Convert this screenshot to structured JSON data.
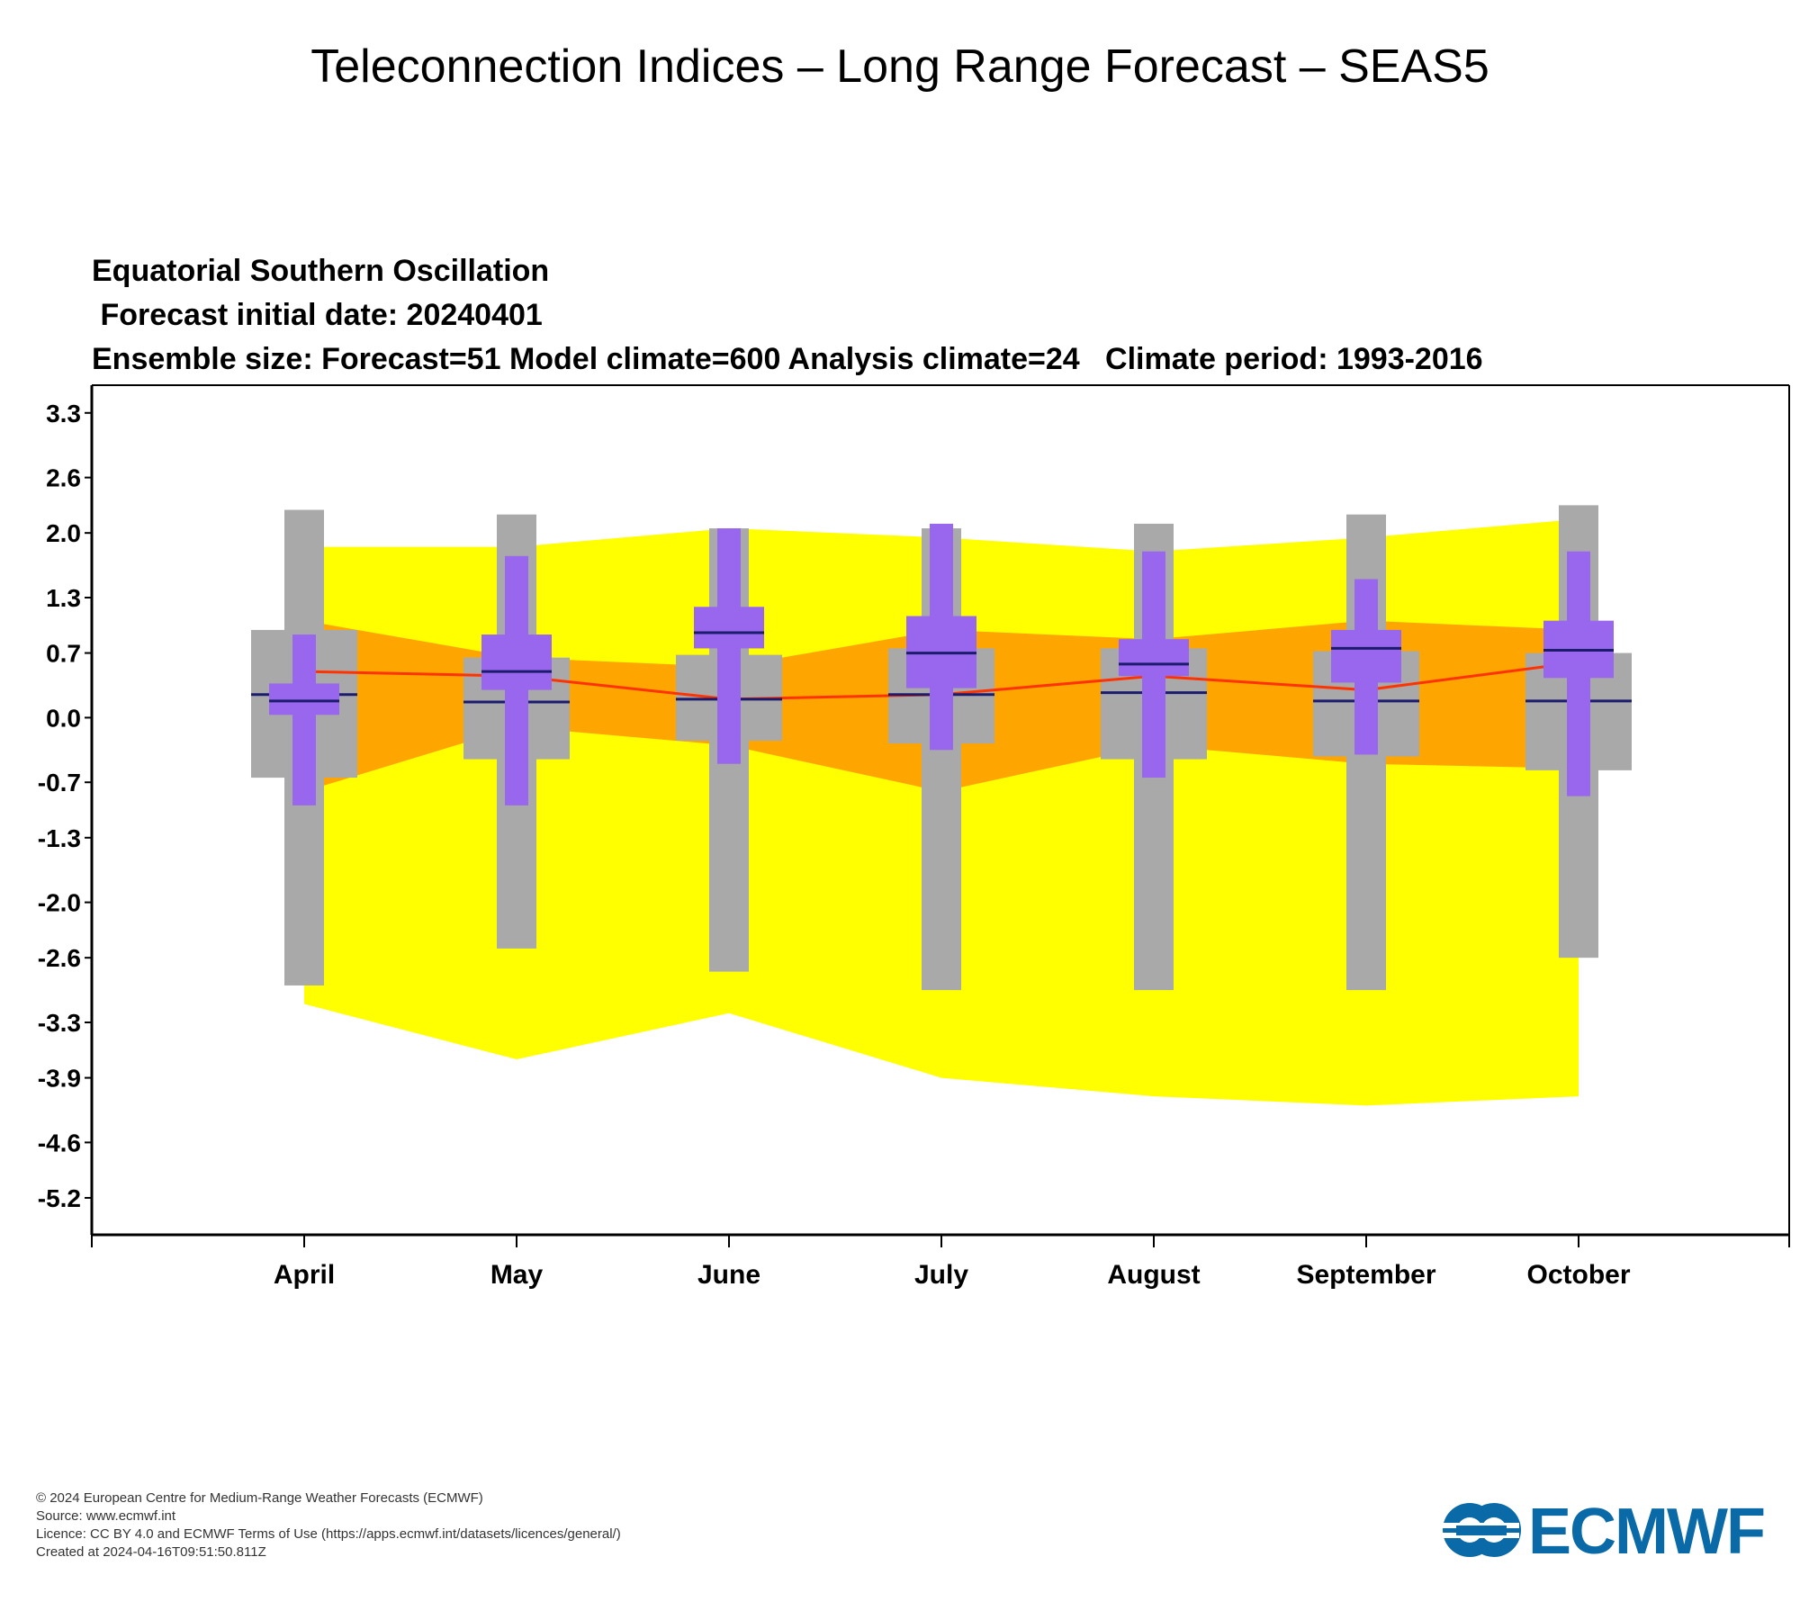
{
  "page": {
    "title": "Teleconnection Indices – Long Range Forecast – SEAS5"
  },
  "chart_data": {
    "type": "box",
    "title_lines": [
      "Equatorial Southern Oscillation",
      " Forecast initial date: 20240401",
      "Ensemble size: Forecast=51 Model climate=600 Analysis climate=24   Climate period: 1993-2016"
    ],
    "categories": [
      "April",
      "May",
      "June",
      "July",
      "August",
      "September",
      "October"
    ],
    "yticks": [
      "3.3",
      "2.6",
      "2.0",
      "1.3",
      "0.7",
      "0.0",
      "-0.7",
      "-1.3",
      "-2.0",
      "-2.6",
      "-3.3",
      "-3.9",
      "-4.6",
      "-5.2"
    ],
    "ylim": [
      -5.6,
      3.6
    ],
    "colors": {
      "model_climate_outer": "#ffff00",
      "model_climate_inner": "#ffa500",
      "analysis_climate": "#a9a9a9",
      "forecast": "#9966ee",
      "median_line": "#1c1c6e",
      "median_trace": "#ff3300"
    },
    "model_climate": {
      "max": [
        1.85,
        1.85,
        2.05,
        1.95,
        1.8,
        1.95,
        2.15
      ],
      "p75": [
        1.05,
        0.65,
        0.55,
        0.95,
        0.85,
        1.05,
        0.95
      ],
      "median": [
        0.5,
        0.45,
        0.2,
        0.25,
        0.45,
        0.3,
        0.6
      ],
      "p25": [
        -0.8,
        -0.1,
        -0.3,
        -0.8,
        -0.3,
        -0.5,
        -0.55
      ],
      "min": [
        -3.1,
        -3.7,
        -3.2,
        -3.9,
        -4.1,
        -4.2,
        -4.1
      ]
    },
    "analysis_climate": {
      "max": [
        2.25,
        2.2,
        2.05,
        2.05,
        2.1,
        2.2,
        2.3
      ],
      "p75": [
        0.95,
        0.65,
        0.68,
        0.75,
        0.75,
        0.72,
        0.7
      ],
      "median": [
        0.25,
        0.17,
        0.2,
        0.25,
        0.27,
        0.18,
        0.18
      ],
      "p25": [
        -0.65,
        -0.45,
        -0.25,
        -0.28,
        -0.45,
        -0.42,
        -0.57
      ],
      "min": [
        -2.9,
        -2.5,
        -2.75,
        -2.95,
        -2.95,
        -2.95,
        -2.6
      ]
    },
    "forecast": {
      "max": [
        0.9,
        1.75,
        2.05,
        2.1,
        1.8,
        1.5,
        1.8
      ],
      "p75": [
        0.37,
        0.9,
        1.2,
        1.1,
        0.85,
        0.95,
        1.05
      ],
      "median": [
        0.18,
        0.5,
        0.92,
        0.7,
        0.58,
        0.75,
        0.73
      ],
      "p25": [
        0.03,
        0.3,
        0.75,
        0.32,
        0.45,
        0.38,
        0.43
      ],
      "min": [
        -0.95,
        -0.95,
        -0.5,
        -0.35,
        -0.65,
        -0.4,
        -0.85
      ]
    }
  },
  "footer": {
    "copyright": "© 2024 European Centre for Medium-Range Weather Forecasts (ECMWF)",
    "source": "Source: www.ecmwf.int",
    "licence": "Licence: CC BY 4.0 and ECMWF Terms of Use (https://apps.ecmwf.int/datasets/licences/general/)",
    "created": "Created at 2024-04-16T09:51:50.811Z"
  },
  "logo": {
    "text": "ECMWF",
    "color": "#0a6aa8"
  }
}
